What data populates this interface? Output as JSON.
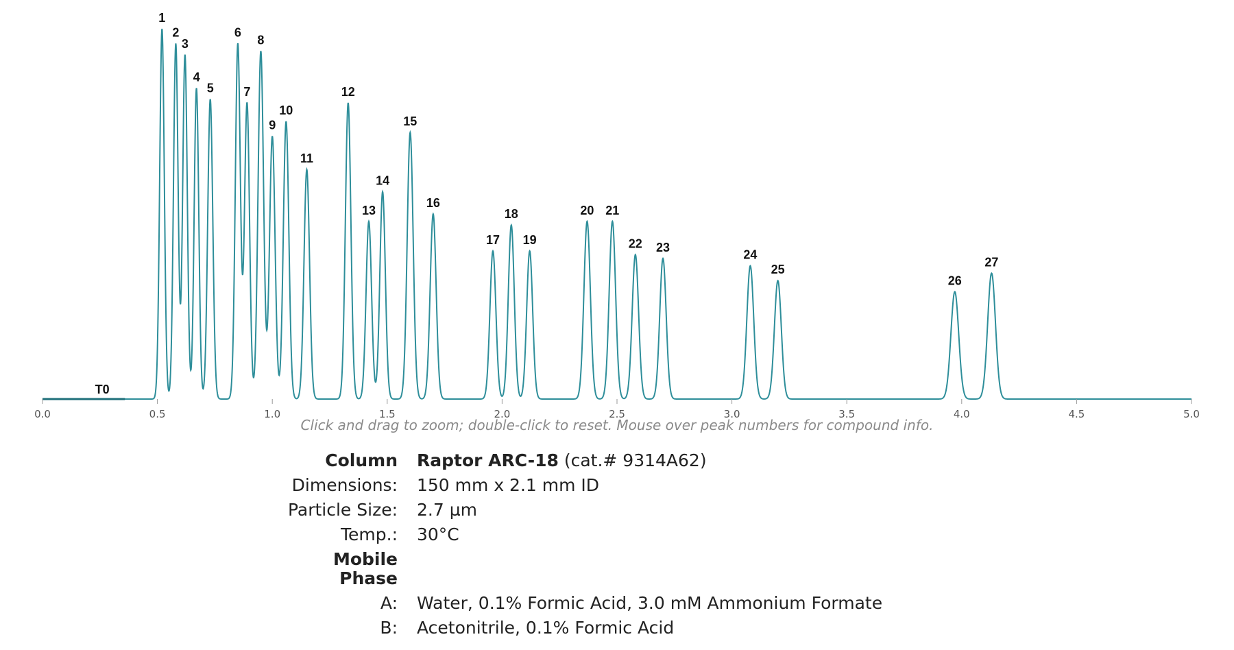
{
  "chart_data": {
    "type": "line",
    "title": "",
    "xlabel": "",
    "ylabel": "",
    "xlim": [
      0.0,
      5.0
    ],
    "x_ticks": [
      "0.0",
      "0.5",
      "1.0",
      "1.5",
      "2.0",
      "2.5",
      "3.0",
      "3.5",
      "4.0",
      "4.5",
      "5.0"
    ],
    "grid": false,
    "t0_label": "T0",
    "t0_x": 0.26,
    "line_color": "#2e8e9a",
    "t0_color": "#1f6f7a",
    "peaks": [
      {
        "label": "1",
        "rt": 0.52,
        "height": 1.0,
        "width": 0.01
      },
      {
        "label": "2",
        "rt": 0.58,
        "height": 0.96,
        "width": 0.01
      },
      {
        "label": "3",
        "rt": 0.62,
        "height": 0.93,
        "width": 0.01
      },
      {
        "label": "4",
        "rt": 0.67,
        "height": 0.84,
        "width": 0.01
      },
      {
        "label": "5",
        "rt": 0.73,
        "height": 0.81,
        "width": 0.011
      },
      {
        "label": "6",
        "rt": 0.85,
        "height": 0.96,
        "width": 0.011
      },
      {
        "label": "7",
        "rt": 0.89,
        "height": 0.8,
        "width": 0.011
      },
      {
        "label": "8",
        "rt": 0.95,
        "height": 0.94,
        "width": 0.012
      },
      {
        "label": "9",
        "rt": 1.0,
        "height": 0.71,
        "width": 0.012
      },
      {
        "label": "10",
        "rt": 1.06,
        "height": 0.75,
        "width": 0.012
      },
      {
        "label": "11",
        "rt": 1.15,
        "height": 0.62,
        "width": 0.012
      },
      {
        "label": "12",
        "rt": 1.33,
        "height": 0.8,
        "width": 0.012
      },
      {
        "label": "13",
        "rt": 1.42,
        "height": 0.48,
        "width": 0.012
      },
      {
        "label": "14",
        "rt": 1.48,
        "height": 0.56,
        "width": 0.012
      },
      {
        "label": "15",
        "rt": 1.6,
        "height": 0.72,
        "width": 0.013
      },
      {
        "label": "16",
        "rt": 1.7,
        "height": 0.5,
        "width": 0.013
      },
      {
        "label": "17",
        "rt": 1.96,
        "height": 0.4,
        "width": 0.013
      },
      {
        "label": "18",
        "rt": 2.04,
        "height": 0.47,
        "width": 0.013
      },
      {
        "label": "19",
        "rt": 2.12,
        "height": 0.4,
        "width": 0.013
      },
      {
        "label": "20",
        "rt": 2.37,
        "height": 0.48,
        "width": 0.014
      },
      {
        "label": "21",
        "rt": 2.48,
        "height": 0.48,
        "width": 0.014
      },
      {
        "label": "22",
        "rt": 2.58,
        "height": 0.39,
        "width": 0.014
      },
      {
        "label": "23",
        "rt": 2.7,
        "height": 0.38,
        "width": 0.014
      },
      {
        "label": "24",
        "rt": 3.08,
        "height": 0.36,
        "width": 0.015
      },
      {
        "label": "25",
        "rt": 3.2,
        "height": 0.32,
        "width": 0.015
      },
      {
        "label": "26",
        "rt": 3.97,
        "height": 0.29,
        "width": 0.017
      },
      {
        "label": "27",
        "rt": 4.13,
        "height": 0.34,
        "width": 0.017
      }
    ]
  },
  "hint": "Click and drag to zoom; double-click to reset. Mouse over peak numbers for compound info.",
  "info": {
    "column_label": "Column",
    "column_name": "Raptor ARC-18",
    "column_cat": " (cat.# 9314A62)",
    "dimensions_label": "Dimensions:",
    "dimensions_value": "150 mm x 2.1 mm ID",
    "particle_label": "Particle Size:",
    "particle_value": "2.7 µm",
    "temp_label": "Temp.:",
    "temp_value": "30°C",
    "mobile_label_1": "Mobile",
    "mobile_label_2": "Phase",
    "a_label": "A:",
    "a_value": "Water, 0.1% Formic Acid, 3.0 mM Ammonium Formate",
    "b_label": "B:",
    "b_value": "Acetonitrile, 0.1% Formic Acid"
  }
}
